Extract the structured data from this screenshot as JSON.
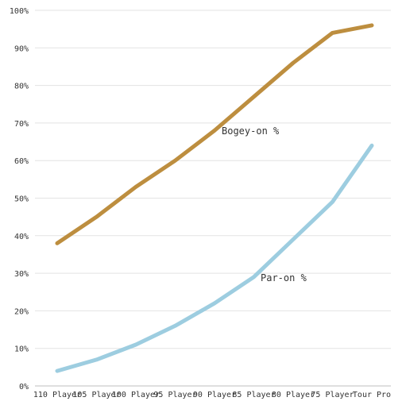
{
  "chart_data": {
    "type": "line",
    "categories": [
      "110 Player",
      "105 Player",
      "100 Player",
      "95 Player",
      "90 Player",
      "85 Player",
      "80 Player",
      "75 Player",
      "Tour Pro"
    ],
    "ylim": [
      0,
      100
    ],
    "y_tick_labels": [
      "0%",
      "10%",
      "20%",
      "30%",
      "40%",
      "50%",
      "60%",
      "70%",
      "80%",
      "90%",
      "100%"
    ],
    "grid": true,
    "series": [
      {
        "name": "Bogey-on %",
        "color": "#bd8e3f",
        "values": [
          38,
          45,
          53,
          60,
          68,
          77,
          86,
          94,
          96
        ]
      },
      {
        "name": "Par-on %",
        "color": "#9dcde0",
        "values": [
          4,
          7,
          11,
          16,
          22,
          29,
          39,
          49,
          64
        ]
      }
    ]
  }
}
